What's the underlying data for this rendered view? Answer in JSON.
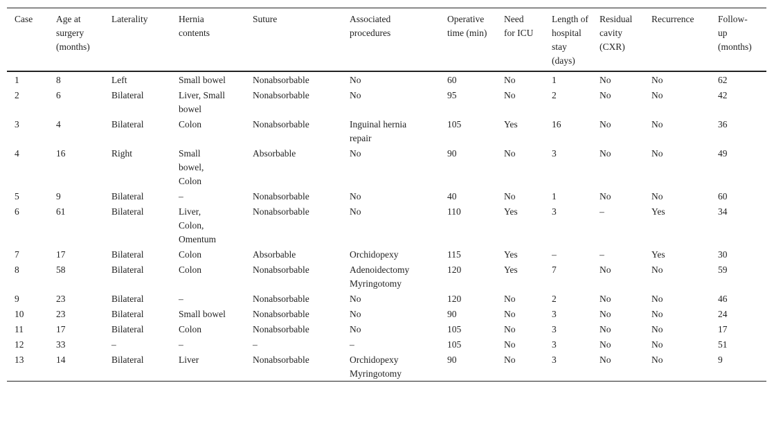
{
  "table": {
    "header": [
      "Case",
      "Age at surgery (months)",
      "Laterality",
      "Hernia contents",
      "Suture",
      "Associated procedures",
      "Operative time (min)",
      "Need for ICU",
      "Length of hospital stay (days)",
      "Residual cavity (CXR)",
      "Recurrence",
      "Follow-up (months)"
    ],
    "rows": [
      [
        "1",
        "8",
        "Left",
        "Small bowel",
        "Nonabsorbable",
        "No",
        "60",
        "No",
        "1",
        "No",
        "No",
        "62"
      ],
      [
        "2",
        "6",
        "Bilateral",
        "Liver, Small bowel",
        "Nonabsorbable",
        "No",
        "95",
        "No",
        "2",
        "No",
        "No",
        "42"
      ],
      [
        "3",
        "4",
        "Bilateral",
        "Colon",
        "Nonabsorbable",
        "Inguinal hernia repair",
        "105",
        "Yes",
        "16",
        "No",
        "No",
        "36"
      ],
      [
        "4",
        "16",
        "Right",
        "Small bowel, Colon",
        "Absorbable",
        "No",
        "90",
        "No",
        "3",
        "No",
        "No",
        "49"
      ],
      [
        "5",
        "9",
        "Bilateral",
        "–",
        "Nonabsorbable",
        "No",
        "40",
        "No",
        "1",
        "No",
        "No",
        "60"
      ],
      [
        "6",
        "61",
        "Bilateral",
        "Liver, Colon, Omentum",
        "Nonabsorbable",
        "No",
        "110",
        "Yes",
        "3",
        "–",
        "Yes",
        "34"
      ],
      [
        "7",
        "17",
        "Bilateral",
        "Colon",
        "Absorbable",
        "Orchidopexy",
        "115",
        "Yes",
        "–",
        "–",
        "Yes",
        "30"
      ],
      [
        "8",
        "58",
        "Bilateral",
        "Colon",
        "Nonabsorbable",
        "Adenoidectomy Myringotomy",
        "120",
        "Yes",
        "7",
        "No",
        "No",
        "59"
      ],
      [
        "9",
        "23",
        "Bilateral",
        "–",
        "Nonabsorbable",
        "No",
        "120",
        "No",
        "2",
        "No",
        "No",
        "46"
      ],
      [
        "10",
        "23",
        "Bilateral",
        "Small bowel",
        "Nonabsorbable",
        "No",
        "90",
        "No",
        "3",
        "No",
        "No",
        "24"
      ],
      [
        "11",
        "17",
        "Bilateral",
        "Colon",
        "Nonabsorbable",
        "No",
        "105",
        "No",
        "3",
        "No",
        "No",
        "17"
      ],
      [
        "12",
        "33",
        "–",
        "–",
        "–",
        "–",
        "105",
        "No",
        "3",
        "No",
        "No",
        "51"
      ],
      [
        "13",
        "14",
        "Bilateral",
        "Liver",
        "Nonabsorbable",
        "Orchidopexy Myringotomy",
        "90",
        "No",
        "3",
        "No",
        "No",
        "9"
      ]
    ]
  }
}
